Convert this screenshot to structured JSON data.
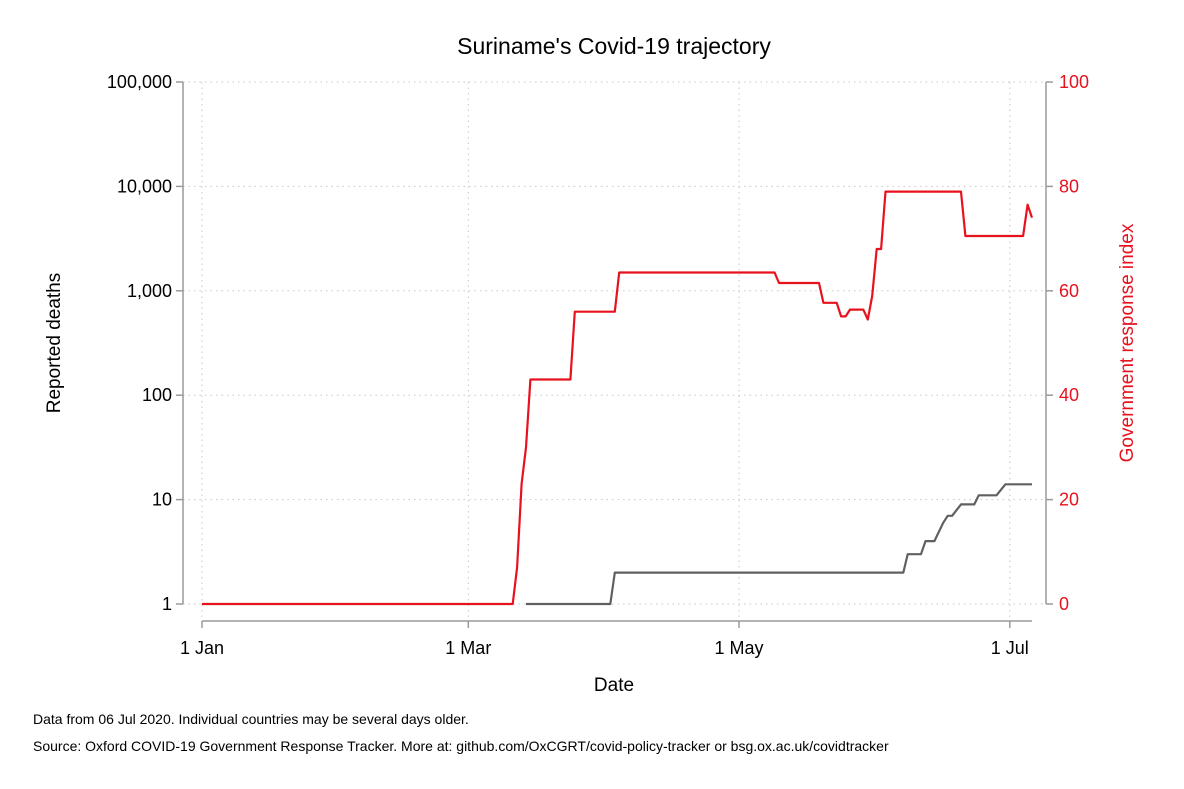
{
  "chart_data": {
    "type": "line",
    "title": "Suriname's Covid-19 trajectory",
    "xlabel": "Date",
    "ylabel": "Reported deaths",
    "y2label": "Government response index",
    "x_axis": {
      "type": "date",
      "range": [
        "2020-01-01",
        "2020-07-06"
      ],
      "ticks": [
        {
          "date": "2020-01-01",
          "label": "1 Jan"
        },
        {
          "date": "2020-03-01",
          "label": "1 Mar"
        },
        {
          "date": "2020-05-01",
          "label": "1 May"
        },
        {
          "date": "2020-07-01",
          "label": "1 Jul"
        }
      ]
    },
    "y_axis": {
      "scale": "log",
      "range": [
        1,
        100000
      ],
      "ticks": [
        {
          "value": 1,
          "label": "1"
        },
        {
          "value": 10,
          "label": "10"
        },
        {
          "value": 100,
          "label": "100"
        },
        {
          "value": 1000,
          "label": "1,000"
        },
        {
          "value": 10000,
          "label": "10,000"
        },
        {
          "value": 100000,
          "label": "100,000"
        }
      ]
    },
    "y2_axis": {
      "scale": "linear",
      "range": [
        0,
        100
      ],
      "ticks": [
        {
          "value": 0,
          "label": "0"
        },
        {
          "value": 20,
          "label": "20"
        },
        {
          "value": 40,
          "label": "40"
        },
        {
          "value": 60,
          "label": "60"
        },
        {
          "value": 80,
          "label": "80"
        },
        {
          "value": 100,
          "label": "100"
        }
      ]
    },
    "grid": true,
    "colors": {
      "deaths": "#606060",
      "response": "#e8121f",
      "axis": "#9a9a9a",
      "grid": "#c8c8c8"
    },
    "series": [
      {
        "key": "deaths",
        "axis": "left",
        "points": [
          [
            "2020-03-14",
            1
          ],
          [
            "2020-04-02",
            1
          ],
          [
            "2020-04-03",
            2
          ],
          [
            "2020-06-07",
            2
          ],
          [
            "2020-06-08",
            3
          ],
          [
            "2020-06-11",
            3
          ],
          [
            "2020-06-12",
            4
          ],
          [
            "2020-06-14",
            4
          ],
          [
            "2020-06-16",
            6
          ],
          [
            "2020-06-17",
            7
          ],
          [
            "2020-06-18",
            7
          ],
          [
            "2020-06-20",
            9
          ],
          [
            "2020-06-23",
            9
          ],
          [
            "2020-06-24",
            11
          ],
          [
            "2020-06-28",
            11
          ],
          [
            "2020-06-30",
            14
          ],
          [
            "2020-07-06",
            14
          ]
        ]
      },
      {
        "key": "response",
        "axis": "right",
        "points": [
          [
            "2020-01-01",
            0
          ],
          [
            "2020-03-11",
            0
          ],
          [
            "2020-03-12",
            7
          ],
          [
            "2020-03-13",
            23
          ],
          [
            "2020-03-14",
            30
          ],
          [
            "2020-03-15",
            43
          ],
          [
            "2020-03-24",
            43
          ],
          [
            "2020-03-25",
            56
          ],
          [
            "2020-04-03",
            56
          ],
          [
            "2020-04-04",
            63.5
          ],
          [
            "2020-05-09",
            63.5
          ],
          [
            "2020-05-10",
            61.5
          ],
          [
            "2020-05-19",
            61.5
          ],
          [
            "2020-05-20",
            57.7
          ],
          [
            "2020-05-23",
            57.7
          ],
          [
            "2020-05-24",
            55.1
          ],
          [
            "2020-05-25",
            55.1
          ],
          [
            "2020-05-26",
            56.4
          ],
          [
            "2020-05-29",
            56.4
          ],
          [
            "2020-05-30",
            54.5
          ],
          [
            "2020-05-31",
            59
          ],
          [
            "2020-06-01",
            68
          ],
          [
            "2020-06-02",
            68
          ],
          [
            "2020-06-03",
            79
          ],
          [
            "2020-06-20",
            79
          ],
          [
            "2020-06-21",
            70.5
          ],
          [
            "2020-07-04",
            70.5
          ],
          [
            "2020-07-05",
            76.5
          ],
          [
            "2020-07-06",
            74
          ]
        ]
      }
    ]
  },
  "notes": {
    "line1": "Data from 06 Jul 2020. Individual countries may be several days older.",
    "line2": "Source: Oxford COVID-19 Government Response Tracker. More at: github.com/OxCGRT/covid-policy-tracker or bsg.ox.ac.uk/covidtracker"
  }
}
